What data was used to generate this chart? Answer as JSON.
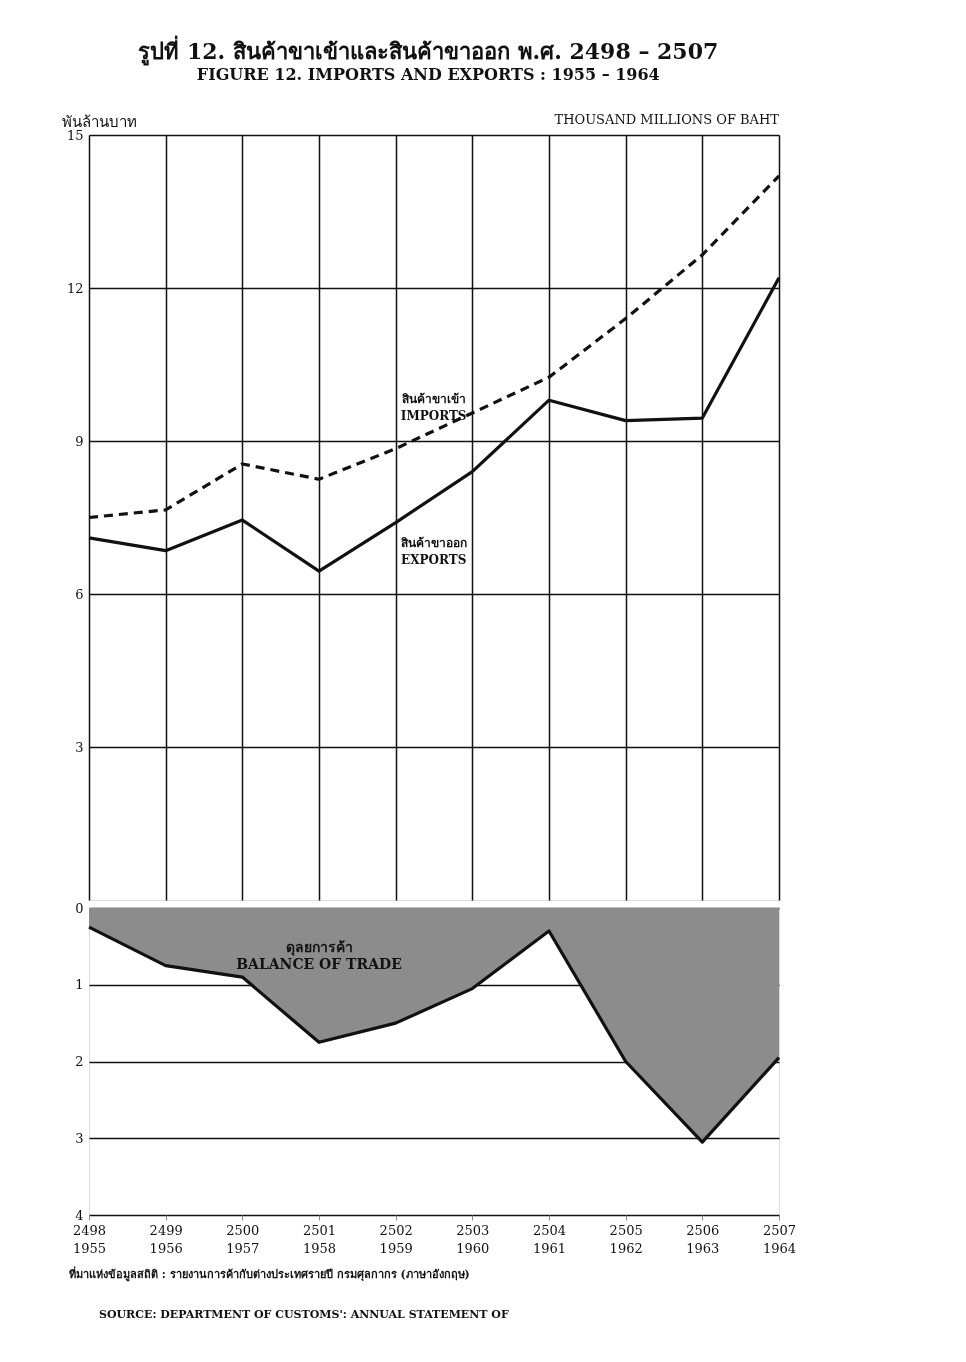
{
  "chart_data": [
    {
      "type": "line",
      "title": "รูปที่ 12. สินค้าขาเข้าและสินค้าขาออก พ.ศ. 2498 – 2507",
      "subtitle": "FIGURE 12. IMPORTS AND EXPORTS : 1955 – 1964",
      "ylabel": "พันล้านบาท",
      "annotations": [
        "THOUSAND MILLIONS OF BAHT"
      ],
      "categories": [
        "2498\n1955",
        "2499\n1956",
        "2500\n1957",
        "2501\n1958",
        "2502\n1959",
        "2503\n1960",
        "2504\n1961",
        "2505\n1962",
        "2506\n1963",
        "2507\n1964"
      ],
      "series": [
        {
          "name": "สินค้าขาเข้า\nIMPORTS",
          "color": "#111111",
          "line_style": "dashed",
          "values": [
            7.5,
            7.65,
            8.55,
            8.25,
            8.85,
            9.55,
            10.25,
            11.4,
            12.65,
            14.2
          ]
        },
        {
          "name": "สินค้าขาออก\nEXPORTS",
          "color": "#111111",
          "line_style": "solid",
          "values": [
            7.1,
            6.85,
            7.45,
            6.45,
            7.4,
            8.4,
            9.8,
            9.4,
            9.45,
            12.2
          ]
        }
      ],
      "ylim": [
        0,
        15
      ],
      "yticks": [
        3,
        6,
        9,
        12,
        15
      ],
      "grid": true,
      "tick_labels": "y"
    },
    {
      "type": "area",
      "annotations": [
        "ที่มาแห่งข้อมูลสถิติ : รายงานการค้ากับต่างประเทศรายปี กรมศุลกากร (ภาษาอังกฤษ)",
        "SOURCE: DEPARTMENT OF CUSTOMS': ANNUAL STATEMENT OF"
      ],
      "categories": [
        "2498\n1955",
        "2499\n1956",
        "2500\n1957",
        "2501\n1958",
        "2502\n1959",
        "2503\n1960",
        "2504\n1961",
        "2505\n1962",
        "2506\n1963",
        "2507\n1964"
      ],
      "series": [
        {
          "name": "ดุลยการค้า\nBALANCE OF TRADE",
          "color": "#8c8c8c",
          "values": [
            0.25,
            0.75,
            0.9,
            1.75,
            1.5,
            1.05,
            0.3,
            2.0,
            3.05,
            1.95
          ]
        }
      ],
      "ylim": [
        4,
        0
      ],
      "yticks": [
        0,
        1,
        2,
        3,
        4
      ],
      "grid": "y"
    }
  ]
}
